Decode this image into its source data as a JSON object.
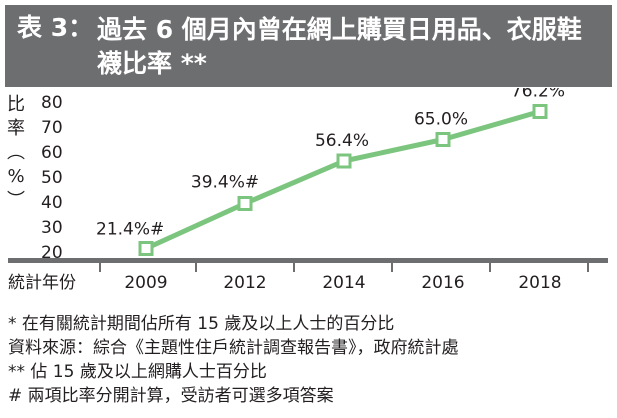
{
  "header": {
    "label": "表 3：",
    "title": "過去 6 個月內曾在網上購買日用品、衣服鞋襪比率 **"
  },
  "chart_data": {
    "type": "line",
    "ylabel": "比率（%）",
    "xlabel": "統計年份",
    "ylim": [
      20,
      80
    ],
    "yticks": [
      20,
      30,
      40,
      50,
      60,
      70,
      80
    ],
    "categories": [
      "2009",
      "2012",
      "2014",
      "2016",
      "2018"
    ],
    "values": [
      21.4,
      39.4,
      56.4,
      65.0,
      76.2
    ],
    "data_labels": [
      "21.4%#",
      "39.4%#",
      "56.4%",
      "65.0%",
      "76.2%"
    ],
    "colors": {
      "line": "#7cc57f",
      "marker_fill": "#ffffff",
      "bar": "#6d6e70"
    },
    "grid": false,
    "legend": "none"
  },
  "notes": [
    "* 在有關統計期間佔所有 15 歲及以上人士的百分比",
    "資料來源：綜合《主題性住戶統計調查報告書》，政府統計處",
    "** 佔 15 歲及以上網購人士百分比",
    "# 兩項比率分開計算，受訪者可選多項答案"
  ]
}
